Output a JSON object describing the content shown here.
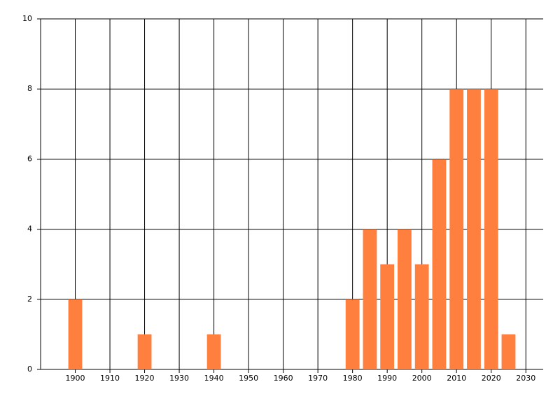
{
  "chart_data": {
    "type": "bar",
    "x": [
      1900,
      1920,
      1940,
      1980,
      1985,
      1990,
      1995,
      2000,
      2005,
      2010,
      2015,
      2020,
      2025
    ],
    "values": [
      2,
      1,
      1,
      2,
      4,
      3,
      4,
      3,
      6,
      8,
      8,
      8,
      1
    ],
    "color": "#ff7f3f",
    "xlim": [
      1890,
      2035
    ],
    "xticks": [
      1900,
      1910,
      1920,
      1930,
      1940,
      1950,
      1960,
      1970,
      1980,
      1990,
      2000,
      2010,
      2020,
      2030
    ],
    "ylim": [
      0,
      10
    ],
    "yticks": [
      0,
      2,
      4,
      6,
      8,
      10
    ],
    "grid": true
  }
}
